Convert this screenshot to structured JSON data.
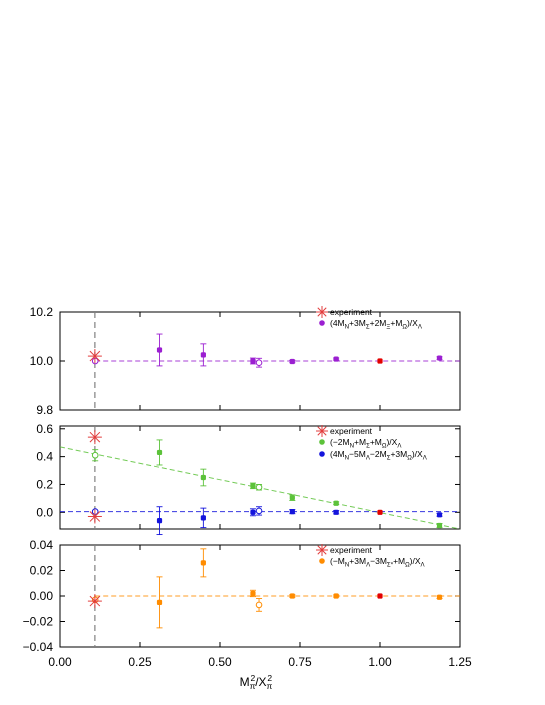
{
  "chart_data": {
    "type": "scatter",
    "xlabel": "M_π²/X_π²",
    "xlim": [
      0,
      1.25
    ],
    "xticks": [
      "0.00",
      "0.25",
      "0.50",
      "0.75",
      "1.00",
      "1.25"
    ],
    "physical_point_x": 0.109,
    "colors": {
      "purple": "#9b1fd1",
      "green": "#5cc23a",
      "blue": "#1414dc",
      "orange": "#ff8c00",
      "red": "#e30000",
      "experiment": "#e23c3c"
    },
    "panels": [
      {
        "id": "top",
        "ylim": [
          9.8,
          10.2
        ],
        "yticks": [
          "9.8",
          "10.0",
          "10.2"
        ],
        "legend": {
          "experiment": "experiment",
          "series": [
            "(4M_N+3M_Σ+2M_Ξ+M_Ω)/X_Λ"
          ]
        },
        "fit_lines": [
          {
            "color": "purple",
            "x": [
              0.11,
              1.25
            ],
            "y": [
              10.0,
              10.0
            ]
          }
        ],
        "experiment": [
          {
            "x": 0.109,
            "y": 10.02
          }
        ],
        "series": [
          {
            "color": "purple",
            "points": [
              {
                "x": 0.311,
                "y": 10.045,
                "err": 0.065
              },
              {
                "x": 0.448,
                "y": 10.025,
                "err": 0.045
              },
              {
                "x": 0.603,
                "y": 10.0,
                "err": 0.012
              },
              {
                "x": 0.726,
                "y": 9.998,
                "err": 0.005
              },
              {
                "x": 0.863,
                "y": 10.008,
                "err": 0.004
              },
              {
                "x": 1.186,
                "y": 10.012,
                "err": 0.005
              }
            ]
          },
          {
            "color": "purple",
            "open": true,
            "points": [
              {
                "x": 0.11,
                "y": 10.0,
                "err": 0.0
              },
              {
                "x": 0.622,
                "y": 9.993,
                "err": 0.018
              }
            ]
          },
          {
            "color": "red",
            "points": [
              {
                "x": 1.0,
                "y": 10.0,
                "err": 0.0
              }
            ]
          }
        ]
      },
      {
        "id": "middle",
        "ylim": [
          -0.12,
          0.62
        ],
        "yticks": [
          "0.0",
          "0.2",
          "0.4",
          "0.6"
        ],
        "legend": {
          "experiment": "experiment",
          "series": [
            "(−2M_N+M_Σ+M_Ω)/X_Λ",
            "(4M_N−5M_Λ−2M_Σ+3M_Ω)/X_Λ"
          ]
        },
        "fit_lines": [
          {
            "color": "green",
            "x": [
              0.0,
              1.25
            ],
            "y": [
              0.47,
              -0.12
            ]
          },
          {
            "color": "blue",
            "x": [
              0.0,
              1.25
            ],
            "y": [
              0.005,
              0.005
            ]
          }
        ],
        "experiment": [
          {
            "x": 0.109,
            "y": 0.54
          },
          {
            "x": 0.109,
            "y": -0.03
          }
        ],
        "series": [
          {
            "color": "green",
            "points": [
              {
                "x": 0.311,
                "y": 0.43,
                "err": 0.09
              },
              {
                "x": 0.448,
                "y": 0.25,
                "err": 0.06
              },
              {
                "x": 0.603,
                "y": 0.19,
                "err": 0.02
              },
              {
                "x": 0.726,
                "y": 0.105,
                "err": 0.02
              },
              {
                "x": 0.863,
                "y": 0.065,
                "err": 0.01
              },
              {
                "x": 1.186,
                "y": -0.095,
                "err": 0.015
              }
            ]
          },
          {
            "color": "green",
            "open": true,
            "points": [
              {
                "x": 0.11,
                "y": 0.41,
                "err": 0.04
              },
              {
                "x": 0.622,
                "y": 0.18,
                "err": 0.02
              }
            ]
          },
          {
            "color": "blue",
            "points": [
              {
                "x": 0.311,
                "y": -0.06,
                "err": 0.1
              },
              {
                "x": 0.448,
                "y": -0.04,
                "err": 0.07
              },
              {
                "x": 0.603,
                "y": 0.0,
                "err": 0.025
              },
              {
                "x": 0.726,
                "y": 0.005,
                "err": 0.015
              },
              {
                "x": 0.863,
                "y": 0.0,
                "err": 0.012
              },
              {
                "x": 1.186,
                "y": -0.018,
                "err": 0.01
              }
            ]
          },
          {
            "color": "blue",
            "open": true,
            "points": [
              {
                "x": 0.11,
                "y": 0.005,
                "err": 0.0
              },
              {
                "x": 0.622,
                "y": 0.01,
                "err": 0.03
              }
            ]
          },
          {
            "color": "red",
            "points": [
              {
                "x": 1.0,
                "y": 0.0,
                "err": 0.0
              }
            ]
          }
        ]
      },
      {
        "id": "bottom",
        "ylim": [
          -0.04,
          0.04
        ],
        "yticks": [
          "−0.04",
          "−0.02",
          "0.00",
          "0.02",
          "0.04"
        ],
        "legend": {
          "experiment": "experiment",
          "series": [
            "(−M_N+3M_Λ−3M_Σ*+M_Ω)/X_Λ"
          ]
        },
        "fit_lines": [
          {
            "color": "orange",
            "x": [
              0.11,
              1.25
            ],
            "y": [
              0.0,
              0.0
            ]
          }
        ],
        "experiment": [
          {
            "x": 0.109,
            "y": -0.004
          }
        ],
        "series": [
          {
            "color": "orange",
            "points": [
              {
                "x": 0.311,
                "y": -0.005,
                "err": 0.02
              },
              {
                "x": 0.448,
                "y": 0.026,
                "err": 0.011
              },
              {
                "x": 0.603,
                "y": 0.002,
                "err": 0.0025
              },
              {
                "x": 0.726,
                "y": 0.0,
                "err": 0.001
              },
              {
                "x": 0.863,
                "y": 0.0,
                "err": 0.0008
              },
              {
                "x": 1.186,
                "y": -0.001,
                "err": 0.001
              }
            ]
          },
          {
            "color": "orange",
            "open": true,
            "points": [
              {
                "x": 0.11,
                "y": -0.003,
                "err": 0.0
              },
              {
                "x": 0.622,
                "y": -0.007,
                "err": 0.005
              }
            ]
          },
          {
            "color": "red",
            "points": [
              {
                "x": 1.0,
                "y": 0.0,
                "err": 0.0
              }
            ]
          }
        ]
      }
    ]
  }
}
